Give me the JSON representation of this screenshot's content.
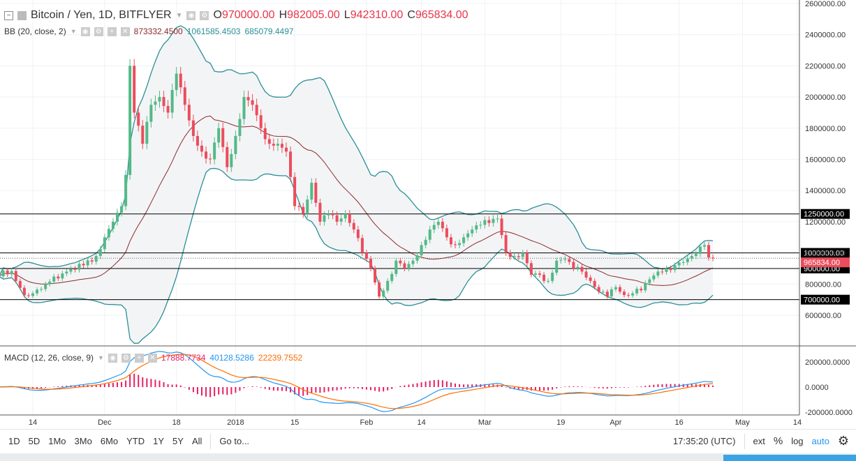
{
  "header": {
    "symbol": "Bitcoin / Yen, 1D, BITFLYER",
    "o_label": "O",
    "o": "970000.00",
    "h_label": "H",
    "h": "982005.00",
    "l_label": "L",
    "l": "942310.00",
    "c_label": "C",
    "c": "965834.00"
  },
  "bb": {
    "label": "BB (20, close, 2)",
    "basis": "873332.4500",
    "upper": "1061585.4503",
    "lower": "685079.4497"
  },
  "macd": {
    "label": "MACD (12, 26, close, 9)",
    "hist": "17888.7734",
    "macd": "40128.5286",
    "signal": "22239.7552"
  },
  "price_axis": [
    "2600000.00",
    "2400000.00",
    "2200000.00",
    "2000000.00",
    "1800000.00",
    "1600000.00",
    "1400000.00",
    "1200000.00",
    "1000000.00",
    "800000.00",
    "600000.00"
  ],
  "macd_axis": [
    "200000.0000",
    "0.0000",
    "-200000.0000"
  ],
  "levels": [
    {
      "label": "1250000.00",
      "value": 1250000
    },
    {
      "label": "1000000.00",
      "value": 1000000
    },
    {
      "label": "900000.00",
      "value": 900000
    },
    {
      "label": "700000.00",
      "value": 700000
    }
  ],
  "last_price": {
    "label": "965834.00",
    "value": 965834,
    "color": "#eb4d5c"
  },
  "time_axis": [
    {
      "label": "14",
      "day": 0
    },
    {
      "label": "Dec",
      "day": 17
    },
    {
      "label": "18",
      "day": 34
    },
    {
      "label": "2018",
      "day": 48
    },
    {
      "label": "15",
      "day": 62
    },
    {
      "label": "Feb",
      "day": 79
    },
    {
      "label": "14",
      "day": 92
    },
    {
      "label": "Mar",
      "day": 107
    },
    {
      "label": "19",
      "day": 125
    },
    {
      "label": "Apr",
      "day": 138
    },
    {
      "label": "16",
      "day": 153
    },
    {
      "label": "May",
      "day": 168
    },
    {
      "label": "14",
      "day": 181
    }
  ],
  "toolbar": {
    "ranges": [
      "1D",
      "5D",
      "1Mo",
      "3Mo",
      "6Mo",
      "YTD",
      "1Y",
      "5Y",
      "All"
    ],
    "goto": "Go to...",
    "time": "17:35:20 (UTC)",
    "ext": "ext",
    "pct": "%",
    "log": "log",
    "auto": "auto"
  },
  "colors": {
    "up": "#53b987",
    "down": "#eb4d5c",
    "bb_line": "#2a8f97",
    "bb_basis": "#8b2a2a",
    "macd": "#2196f3",
    "signal": "#ff6d00",
    "hist": "#e91e63"
  },
  "chart_data": {
    "type": "candlestick",
    "anchors": [
      [
        -8,
        850000
      ],
      [
        -4,
        820000
      ],
      [
        0,
        740000
      ],
      [
        3,
        800000
      ],
      [
        8,
        880000
      ],
      [
        12,
        920000
      ],
      [
        15,
        980000
      ],
      [
        17,
        1100000
      ],
      [
        19,
        1200000
      ],
      [
        21,
        1300000
      ],
      [
        22,
        1500000
      ],
      [
        23,
        2200000
      ],
      [
        24,
        1900000
      ],
      [
        26,
        1700000
      ],
      [
        28,
        1950000
      ],
      [
        30,
        2000000
      ],
      [
        32,
        1900000
      ],
      [
        34,
        2150000
      ],
      [
        36,
        1950000
      ],
      [
        38,
        1750000
      ],
      [
        40,
        1650000
      ],
      [
        42,
        1600000
      ],
      [
        44,
        1800000
      ],
      [
        46,
        1550000
      ],
      [
        48,
        1750000
      ],
      [
        50,
        2000000
      ],
      [
        52,
        1950000
      ],
      [
        54,
        1800000
      ],
      [
        56,
        1700000
      ],
      [
        58,
        1700000
      ],
      [
        60,
        1650000
      ],
      [
        62,
        1300000
      ],
      [
        64,
        1250000
      ],
      [
        66,
        1450000
      ],
      [
        68,
        1200000
      ],
      [
        70,
        1250000
      ],
      [
        72,
        1200000
      ],
      [
        74,
        1250000
      ],
      [
        76,
        1150000
      ],
      [
        78,
        1000000
      ],
      [
        80,
        900000
      ],
      [
        82,
        720000
      ],
      [
        84,
        820000
      ],
      [
        86,
        950000
      ],
      [
        88,
        900000
      ],
      [
        90,
        950000
      ],
      [
        92,
        1050000
      ],
      [
        94,
        1150000
      ],
      [
        96,
        1200000
      ],
      [
        98,
        1100000
      ],
      [
        100,
        1050000
      ],
      [
        102,
        1100000
      ],
      [
        104,
        1150000
      ],
      [
        106,
        1180000
      ],
      [
        110,
        1220000
      ],
      [
        112,
        1000000
      ],
      [
        114,
        980000
      ],
      [
        116,
        1000000
      ],
      [
        118,
        860000
      ],
      [
        120,
        860000
      ],
      [
        122,
        820000
      ],
      [
        124,
        950000
      ],
      [
        126,
        960000
      ],
      [
        128,
        900000
      ],
      [
        130,
        880000
      ],
      [
        132,
        820000
      ],
      [
        134,
        750000
      ],
      [
        136,
        720000
      ],
      [
        138,
        780000
      ],
      [
        140,
        730000
      ],
      [
        142,
        740000
      ],
      [
        144,
        760000
      ],
      [
        146,
        830000
      ],
      [
        148,
        880000
      ],
      [
        150,
        900000
      ],
      [
        152,
        920000
      ],
      [
        154,
        940000
      ],
      [
        156,
        980000
      ],
      [
        158,
        1040000
      ],
      [
        159,
        1050000
      ],
      [
        160,
        970000
      ],
      [
        161,
        965834
      ]
    ],
    "ylim": [
      600000,
      2600000
    ]
  }
}
